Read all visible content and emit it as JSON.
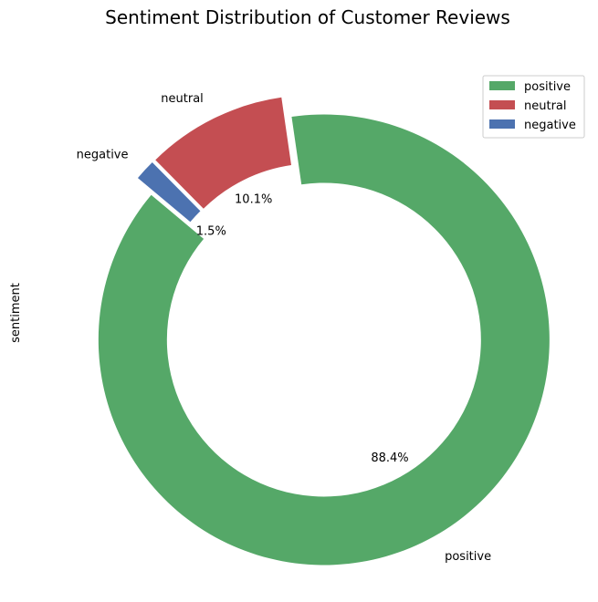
{
  "chart_data": {
    "type": "pie",
    "style": "donut",
    "title": "Sentiment Distribution of Customer Reviews",
    "ylabel": "sentiment",
    "categories": [
      "positive",
      "neutral",
      "negative"
    ],
    "values": [
      88.4,
      10.1,
      1.5
    ],
    "percent_labels": [
      "88.4%",
      "10.1%",
      "1.5%"
    ],
    "colors": [
      "#55a868",
      "#c44e52",
      "#4c72b0"
    ],
    "exploded": true,
    "legend": {
      "position": "top-right",
      "entries": [
        "positive",
        "neutral",
        "negative"
      ]
    }
  }
}
